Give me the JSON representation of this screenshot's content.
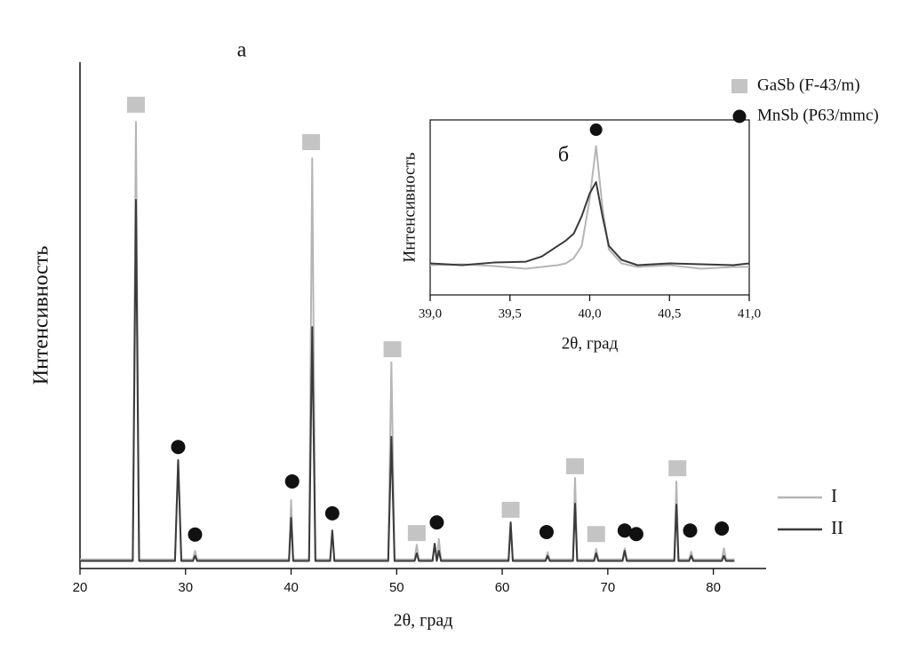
{
  "chart_data": [
    {
      "type": "line",
      "label": "а",
      "xlabel": "2θ, град",
      "ylabel": "Интенсивность",
      "xlim": [
        20,
        85
      ],
      "xticks": [
        20,
        30,
        40,
        50,
        60,
        70,
        80
      ],
      "ylim": [
        0,
        100
      ],
      "x": [
        20.0,
        22,
        25.0,
        25.3,
        25.6,
        27,
        29.0,
        29.3,
        29.6,
        30.7,
        30.9,
        31.1,
        35,
        39.8,
        40.0,
        40.2,
        41.7,
        42.0,
        42.3,
        43.7,
        43.9,
        44.1,
        47,
        49.2,
        49.5,
        49.8,
        51.7,
        51.9,
        52.1,
        53.4,
        53.6,
        53.8,
        54.0,
        54.2,
        58,
        60.6,
        60.8,
        61.0,
        64.1,
        64.3,
        64.5,
        66.7,
        66.9,
        67.1,
        68.7,
        68.9,
        69.1,
        71.4,
        71.6,
        71.8,
        74,
        76.3,
        76.5,
        76.7,
        77.7,
        77.9,
        78.1,
        80.8,
        81.0,
        81.2,
        82.0
      ],
      "series": [
        {
          "name": "I",
          "color": "#b5b5b5",
          "values": [
            1.8,
            1.8,
            1.8,
            88.2,
            1.8,
            1.8,
            1.8,
            21.4,
            1.8,
            1.8,
            3.5,
            1.8,
            1.8,
            1.8,
            13.5,
            1.8,
            1.8,
            81,
            1.8,
            1.8,
            7.5,
            1.8,
            1.8,
            1.8,
            40.7,
            1.8,
            1.8,
            4.7,
            1.8,
            1.8,
            4.9,
            1.8,
            5.8,
            1.8,
            1.8,
            1.8,
            9.1,
            1.8,
            1.8,
            3.2,
            1.8,
            1.8,
            17.9,
            1.8,
            1.8,
            3.9,
            1.8,
            1.8,
            4,
            1.8,
            1.8,
            1.8,
            17.2,
            1.8,
            1.8,
            3.3,
            1.8,
            1.8,
            4,
            1.8,
            1.8
          ]
        },
        {
          "name": "II",
          "color": "#3a3a3a",
          "values": [
            1.5,
            1.5,
            1.5,
            72.8,
            1.5,
            1.5,
            1.5,
            21.4,
            1.5,
            1.5,
            2.5,
            1.5,
            1.5,
            1.5,
            10,
            1.5,
            1.5,
            47.7,
            1.5,
            1.5,
            7.5,
            1.5,
            1.5,
            1.5,
            26,
            1.5,
            1.5,
            3,
            1.5,
            1.5,
            4.9,
            1.5,
            3.5,
            1.5,
            1.5,
            1.5,
            9.1,
            1.5,
            1.5,
            2.5,
            1.5,
            1.5,
            12.8,
            1.5,
            1.5,
            3,
            1.5,
            1.5,
            3.5,
            1.5,
            1.5,
            1.5,
            12.6,
            1.5,
            1.5,
            2.5,
            1.5,
            1.5,
            2.5,
            1.5,
            1.5
          ]
        }
      ],
      "phases": [
        {
          "name": "GaSb (F-43/m)",
          "symbol": "square",
          "color": "#c4c4c4"
        },
        {
          "name": "MnSb (P63/mmc)",
          "symbol": "circle",
          "color": "#111111"
        }
      ],
      "markers": [
        {
          "symbol": "square",
          "x": 25.3,
          "y": 91.6
        },
        {
          "symbol": "square",
          "x": 41.9,
          "y": 84.2
        },
        {
          "symbol": "square",
          "x": 49.6,
          "y": 43.3
        },
        {
          "symbol": "square",
          "x": 51.9,
          "y": 7
        },
        {
          "symbol": "square",
          "x": 60.8,
          "y": 11.6
        },
        {
          "symbol": "square",
          "x": 66.9,
          "y": 20.2
        },
        {
          "symbol": "square",
          "x": 68.9,
          "y": 6.8
        },
        {
          "symbol": "square",
          "x": 76.6,
          "y": 19.8
        },
        {
          "symbol": "circle",
          "x": 29.3,
          "y": 24
        },
        {
          "symbol": "circle",
          "x": 30.9,
          "y": 6.7
        },
        {
          "symbol": "circle",
          "x": 40.1,
          "y": 17.2
        },
        {
          "symbol": "circle",
          "x": 43.9,
          "y": 10.9
        },
        {
          "symbol": "circle",
          "x": 53.8,
          "y": 9.1
        },
        {
          "symbol": "circle",
          "x": 64.2,
          "y": 7.2
        },
        {
          "symbol": "circle",
          "x": 71.6,
          "y": 7.5
        },
        {
          "symbol": "circle",
          "x": 72.7,
          "y": 6.8
        },
        {
          "symbol": "circle",
          "x": 77.8,
          "y": 7.5
        },
        {
          "symbol": "circle",
          "x": 80.8,
          "y": 7.9
        }
      ]
    },
    {
      "type": "line",
      "label": "б",
      "xlabel": "2θ, град",
      "ylabel": "Интенсивность",
      "xlim": [
        39.0,
        41.0
      ],
      "ylim": [
        0,
        100
      ],
      "xticks": [
        {
          "value": 39.0,
          "label": "39,0"
        },
        {
          "value": 39.5,
          "label": "39,5"
        },
        {
          "value": 40.0,
          "label": "40,0"
        },
        {
          "value": 40.5,
          "label": "40,5"
        },
        {
          "value": 41.0,
          "label": "41,0"
        }
      ],
      "x": [
        39.0,
        39.2,
        39.4,
        39.6,
        39.7,
        39.8,
        39.85,
        39.9,
        39.95,
        40.0,
        40.04,
        40.08,
        40.12,
        40.2,
        40.3,
        40.5,
        40.7,
        40.9,
        41.0
      ],
      "series": [
        {
          "color": "#b5b5b5",
          "values": [
            17,
            17.5,
            16.5,
            15,
            16,
            17,
            18,
            21,
            28,
            55,
            85,
            50,
            26,
            18,
            16,
            17,
            15,
            16,
            16
          ]
        },
        {
          "color": "#3a3a3a",
          "values": [
            18,
            17,
            18.5,
            19,
            22,
            28,
            31,
            35,
            45,
            58,
            64.5,
            45,
            28,
            20,
            17,
            18,
            17.5,
            17,
            18
          ]
        }
      ],
      "markers": [
        {
          "symbol": "circle",
          "x": 40.04,
          "y": 94.4
        }
      ]
    }
  ]
}
